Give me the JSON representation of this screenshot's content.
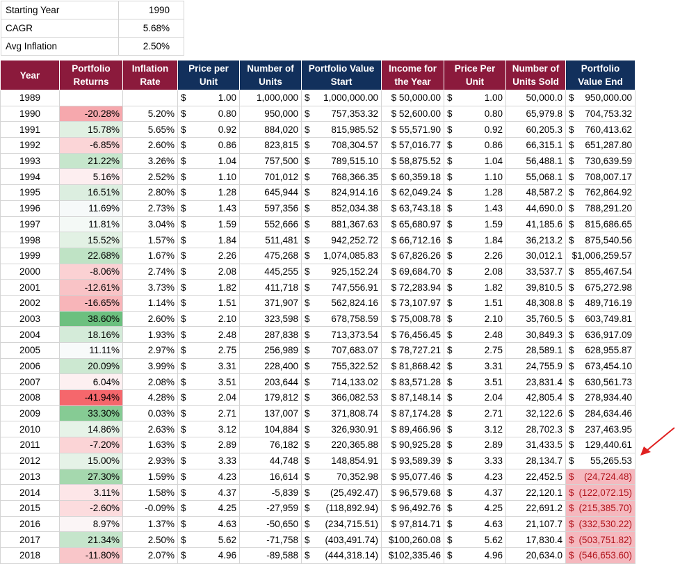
{
  "params": [
    {
      "label": "Starting Year",
      "value": "1990"
    },
    {
      "label": "CAGR",
      "value": "5.68%"
    },
    {
      "label": "Avg Inflation",
      "value": "2.50%"
    }
  ],
  "headers": [
    {
      "l1": "Year",
      "l2": "",
      "color": "maroon"
    },
    {
      "l1": "Portfolio",
      "l2": "Returns",
      "color": "maroon"
    },
    {
      "l1": "Inflation",
      "l2": "Rate",
      "color": "maroon"
    },
    {
      "l1": "Price per",
      "l2": "Unit",
      "color": "navy"
    },
    {
      "l1": "Number of",
      "l2": "Units",
      "color": "navy"
    },
    {
      "l1": "Portfolio Value",
      "l2": "Start",
      "color": "navy"
    },
    {
      "l1": "Income for",
      "l2": "the Year",
      "color": "maroon"
    },
    {
      "l1": "Price Per",
      "l2": "Unit",
      "color": "maroon"
    },
    {
      "l1": "Number of",
      "l2": "Units Sold",
      "color": "maroon"
    },
    {
      "l1": "Portfolio",
      "l2": "Value End",
      "color": "navy"
    }
  ],
  "rows": [
    {
      "year": "1989",
      "ret": "",
      "ret_bg": "#ffffff",
      "inf": "",
      "price": "1.00",
      "units": "1,000,000",
      "start": "1,000,000.00",
      "income": "$ 50,000.00",
      "price2": "1.00",
      "sold": "50,000.0",
      "end": "950,000.00",
      "end_neg": false
    },
    {
      "year": "1990",
      "ret": "-20.28%",
      "ret_bg": "#f6a8ad",
      "inf": "5.20%",
      "price": "0.80",
      "units": "950,000",
      "start": "757,353.32",
      "income": "$ 52,600.00",
      "price2": "0.80",
      "sold": "65,979.8",
      "end": "704,753.32",
      "end_neg": false
    },
    {
      "year": "1991",
      "ret": "15.78%",
      "ret_bg": "#e0f0e2",
      "inf": "5.65%",
      "price": "0.92",
      "units": "884,020",
      "start": "815,985.52",
      "income": "$ 55,571.90",
      "price2": "0.92",
      "sold": "60,205.3",
      "end": "760,413.62",
      "end_neg": false
    },
    {
      "year": "1992",
      "ret": "-6.85%",
      "ret_bg": "#fbd5d7",
      "inf": "2.60%",
      "price": "0.86",
      "units": "823,815",
      "start": "708,304.57",
      "income": "$ 57,016.77",
      "price2": "0.86",
      "sold": "66,315.1",
      "end": "651,287.80",
      "end_neg": false
    },
    {
      "year": "1993",
      "ret": "21.22%",
      "ret_bg": "#c6e6cc",
      "inf": "3.26%",
      "price": "1.04",
      "units": "757,500",
      "start": "789,515.10",
      "income": "$ 58,875.52",
      "price2": "1.04",
      "sold": "56,488.1",
      "end": "730,639.59",
      "end_neg": false
    },
    {
      "year": "1994",
      "ret": "5.16%",
      "ret_bg": "#fdeef0",
      "inf": "2.52%",
      "price": "1.10",
      "units": "701,012",
      "start": "768,366.35",
      "income": "$ 60,359.18",
      "price2": "1.10",
      "sold": "55,068.1",
      "end": "708,007.17",
      "end_neg": false
    },
    {
      "year": "1995",
      "ret": "16.51%",
      "ret_bg": "#dceee0",
      "inf": "2.80%",
      "price": "1.28",
      "units": "645,944",
      "start": "824,914.16",
      "income": "$ 62,049.24",
      "price2": "1.28",
      "sold": "48,587.2",
      "end": "762,864.92",
      "end_neg": false
    },
    {
      "year": "1996",
      "ret": "11.69%",
      "ret_bg": "#f6f9f9",
      "inf": "2.73%",
      "price": "1.43",
      "units": "597,356",
      "start": "852,034.38",
      "income": "$ 63,743.18",
      "price2": "1.43",
      "sold": "44,690.0",
      "end": "788,291.20",
      "end_neg": false
    },
    {
      "year": "1997",
      "ret": "11.81%",
      "ret_bg": "#f4f9f6",
      "inf": "3.04%",
      "price": "1.59",
      "units": "552,666",
      "start": "881,367.63",
      "income": "$ 65,680.97",
      "price2": "1.59",
      "sold": "41,185.6",
      "end": "815,686.65",
      "end_neg": false
    },
    {
      "year": "1998",
      "ret": "15.52%",
      "ret_bg": "#e2f1e4",
      "inf": "1.57%",
      "price": "1.84",
      "units": "511,481",
      "start": "942,252.72",
      "income": "$ 66,712.16",
      "price2": "1.84",
      "sold": "36,213.2",
      "end": "875,540.56",
      "end_neg": false
    },
    {
      "year": "1999",
      "ret": "22.68%",
      "ret_bg": "#bfe3c5",
      "inf": "1.67%",
      "price": "2.26",
      "units": "475,268",
      "start": "1,074,085.83",
      "income": "$ 67,826.26",
      "price2": "2.26",
      "sold": "30,012.1",
      "end": "$1,006,259.57",
      "end_neg": false
    },
    {
      "year": "2000",
      "ret": "-8.06%",
      "ret_bg": "#fbd1d3",
      "inf": "2.74%",
      "price": "2.08",
      "units": "445,255",
      "start": "925,152.24",
      "income": "$ 69,684.70",
      "price2": "2.08",
      "sold": "33,537.7",
      "end": "855,467.54",
      "end_neg": false
    },
    {
      "year": "2001",
      "ret": "-12.61%",
      "ret_bg": "#f9c3c6",
      "inf": "3.73%",
      "price": "1.82",
      "units": "411,718",
      "start": "747,556.91",
      "income": "$ 72,283.94",
      "price2": "1.82",
      "sold": "39,810.5",
      "end": "675,272.98",
      "end_neg": false
    },
    {
      "year": "2002",
      "ret": "-16.65%",
      "ret_bg": "#f8b5b9",
      "inf": "1.14%",
      "price": "1.51",
      "units": "371,907",
      "start": "562,824.16",
      "income": "$ 73,107.97",
      "price2": "1.51",
      "sold": "48,308.8",
      "end": "489,716.19",
      "end_neg": false
    },
    {
      "year": "2003",
      "ret": "38.60%",
      "ret_bg": "#6cc07f",
      "inf": "2.60%",
      "price": "2.10",
      "units": "323,598",
      "start": "678,758.59",
      "income": "$ 75,008.78",
      "price2": "2.10",
      "sold": "35,760.5",
      "end": "603,749.81",
      "end_neg": false
    },
    {
      "year": "2004",
      "ret": "18.16%",
      "ret_bg": "#d4ebd9",
      "inf": "1.93%",
      "price": "2.48",
      "units": "287,838",
      "start": "713,373.54",
      "income": "$ 76,456.45",
      "price2": "2.48",
      "sold": "30,849.3",
      "end": "636,917.09",
      "end_neg": false
    },
    {
      "year": "2005",
      "ret": "11.11%",
      "ret_bg": "#f8fafa",
      "inf": "2.97%",
      "price": "2.75",
      "units": "256,989",
      "start": "707,683.07",
      "income": "$ 78,727.21",
      "price2": "2.75",
      "sold": "28,589.1",
      "end": "628,955.87",
      "end_neg": false
    },
    {
      "year": "2006",
      "ret": "20.09%",
      "ret_bg": "#cce8d1",
      "inf": "3.99%",
      "price": "3.31",
      "units": "228,400",
      "start": "755,322.52",
      "income": "$ 81,868.42",
      "price2": "3.31",
      "sold": "24,755.9",
      "end": "673,454.10",
      "end_neg": false
    },
    {
      "year": "2007",
      "ret": "6.04%",
      "ret_bg": "#fdf0f1",
      "inf": "2.08%",
      "price": "3.51",
      "units": "203,644",
      "start": "714,133.02",
      "income": "$ 83,571.28",
      "price2": "3.51",
      "sold": "23,831.4",
      "end": "630,561.73",
      "end_neg": false
    },
    {
      "year": "2008",
      "ret": "-41.94%",
      "ret_bg": "#f5676c",
      "inf": "4.28%",
      "price": "2.04",
      "units": "179,812",
      "start": "366,082.53",
      "income": "$ 87,148.14",
      "price2": "2.04",
      "sold": "42,805.4",
      "end": "278,934.40",
      "end_neg": false
    },
    {
      "year": "2009",
      "ret": "33.30%",
      "ret_bg": "#86cb94",
      "inf": "0.03%",
      "price": "2.71",
      "units": "137,007",
      "start": "371,808.74",
      "income": "$ 87,174.28",
      "price2": "2.71",
      "sold": "32,122.6",
      "end": "284,634.46",
      "end_neg": false
    },
    {
      "year": "2010",
      "ret": "14.86%",
      "ret_bg": "#e6f3e8",
      "inf": "2.63%",
      "price": "3.12",
      "units": "104,884",
      "start": "326,930.91",
      "income": "$ 89,466.96",
      "price2": "3.12",
      "sold": "28,702.3",
      "end": "237,463.95",
      "end_neg": false
    },
    {
      "year": "2011",
      "ret": "-7.20%",
      "ret_bg": "#fbd4d6",
      "inf": "1.63%",
      "price": "2.89",
      "units": "76,182",
      "start": "220,365.88",
      "income": "$ 90,925.28",
      "price2": "2.89",
      "sold": "31,433.5",
      "end": "129,440.61",
      "end_neg": false
    },
    {
      "year": "2012",
      "ret": "15.00%",
      "ret_bg": "#e5f2e7",
      "inf": "2.93%",
      "price": "3.33",
      "units": "44,748",
      "start": "148,854.91",
      "income": "$ 93,589.39",
      "price2": "3.33",
      "sold": "28,134.7",
      "end": "55,265.53",
      "end_neg": false
    },
    {
      "year": "2013",
      "ret": "27.30%",
      "ret_bg": "#a5d8ae",
      "inf": "1.59%",
      "price": "4.23",
      "units": "16,614",
      "start": "70,352.98",
      "income": "$ 95,077.46",
      "price2": "4.23",
      "sold": "22,452.5",
      "end": "(24,724.48)",
      "end_neg": true
    },
    {
      "year": "2014",
      "ret": "3.11%",
      "ret_bg": "#fde6e8",
      "inf": "1.58%",
      "price": "4.37",
      "units": "-5,839",
      "start": "(25,492.47)",
      "income": "$ 96,579.68",
      "price2": "4.37",
      "sold": "22,120.1",
      "end": "(122,072.15)",
      "end_neg": true
    },
    {
      "year": "2015",
      "ret": "-2.60%",
      "ret_bg": "#fcdcde",
      "inf": "-0.09%",
      "price": "4.25",
      "units": "-27,959",
      "start": "(118,892.94)",
      "income": "$ 96,492.76",
      "price2": "4.25",
      "sold": "22,691.2",
      "end": "(215,385.70)",
      "end_neg": true
    },
    {
      "year": "2016",
      "ret": "8.97%",
      "ret_bg": "#fbf5f6",
      "inf": "1.37%",
      "price": "4.63",
      "units": "-50,650",
      "start": "(234,715.51)",
      "income": "$ 97,814.71",
      "price2": "4.63",
      "sold": "21,107.7",
      "end": "(332,530.22)",
      "end_neg": true
    },
    {
      "year": "2017",
      "ret": "21.34%",
      "ret_bg": "#c5e5cb",
      "inf": "2.50%",
      "price": "5.62",
      "units": "-71,758",
      "start": "(403,491.74)",
      "income": "$100,260.08",
      "price2": "5.62",
      "sold": "17,830.4",
      "end": "(503,751.82)",
      "end_neg": true
    },
    {
      "year": "2018",
      "ret": "-11.80%",
      "ret_bg": "#f9c6c9",
      "inf": "2.07%",
      "price": "4.96",
      "units": "-89,588",
      "start": "(444,318.14)",
      "income": "$102,335.46",
      "price2": "4.96",
      "sold": "20,634.0",
      "end": "(546,653.60)",
      "end_neg": true
    }
  ],
  "currency_symbol": "$",
  "colors": {
    "header_maroon": "#8b1a3c",
    "header_navy": "#12305c",
    "negative_end_bg": "#f5b8be",
    "negative_end_text": "#b0141c",
    "arrow": "#e02020"
  }
}
